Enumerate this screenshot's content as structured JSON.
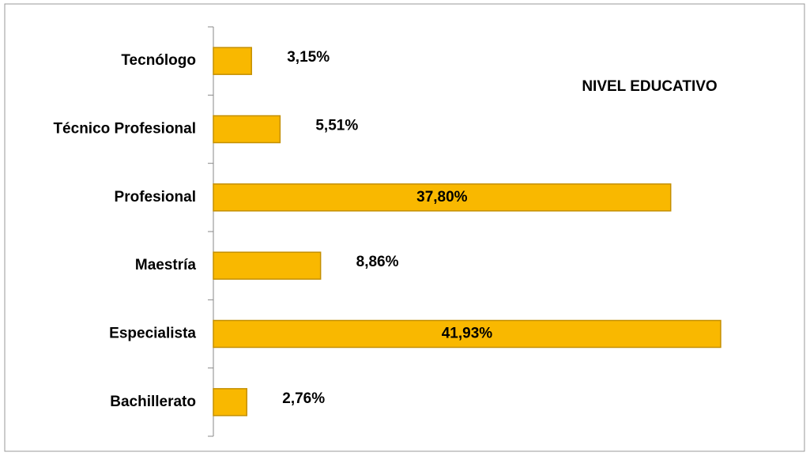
{
  "chart_data": {
    "type": "bar",
    "orientation": "horizontal",
    "title": "NIVEL EDUCATIVO",
    "categories": [
      "Tecnólogo",
      "Técnico Profesional",
      "Profesional",
      "Maestría",
      "Especialista",
      "Bachillerato"
    ],
    "values": [
      3.15,
      5.51,
      37.8,
      8.86,
      41.93,
      2.76
    ],
    "value_labels": [
      "3,15%",
      "5,51%",
      "37,80%",
      "8,86%",
      "41,93%",
      "2,76%"
    ],
    "color": "#f9b800"
  }
}
